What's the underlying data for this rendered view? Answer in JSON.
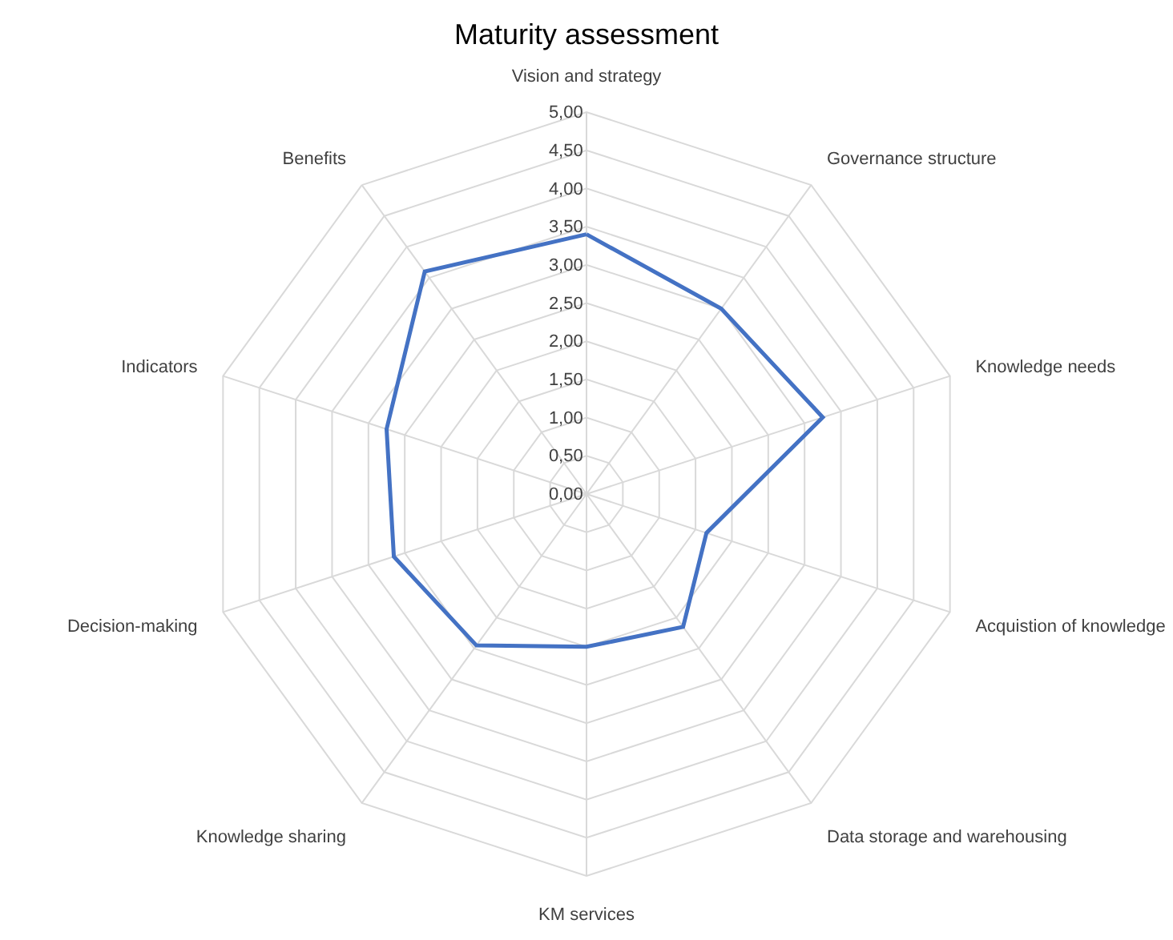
{
  "chart_data": {
    "type": "radar",
    "title": "Maturity assessment",
    "categories": [
      "Vision and strategy",
      "Governance structure",
      "Knowledge needs",
      "Acquistion of knowledge",
      "Data storage and warehousing",
      "KM services",
      "Knowledge sharing",
      "Decision-making",
      "Indicators",
      "Benefits"
    ],
    "series": [
      {
        "color": "#4472c4",
        "values": [
          3.4,
          3.0,
          3.25,
          1.65,
          2.15,
          2.0,
          2.45,
          2.65,
          2.75,
          3.6
        ]
      }
    ],
    "ylim": [
      0,
      5
    ],
    "yticks": [
      {
        "value": 0,
        "label": "0,00"
      },
      {
        "value": 0.5,
        "label": "0,50"
      },
      {
        "value": 1,
        "label": "1,00"
      },
      {
        "value": 1.5,
        "label": "1,50"
      },
      {
        "value": 2,
        "label": "2,00"
      },
      {
        "value": 2.5,
        "label": "2,50"
      },
      {
        "value": 3,
        "label": "3,00"
      },
      {
        "value": 3.5,
        "label": "3,50"
      },
      {
        "value": 4,
        "label": "4,00"
      },
      {
        "value": 4.5,
        "label": "4,50"
      },
      {
        "value": 5,
        "label": "5,00"
      }
    ],
    "grid": true,
    "marker": "none",
    "line_style": "solid"
  }
}
